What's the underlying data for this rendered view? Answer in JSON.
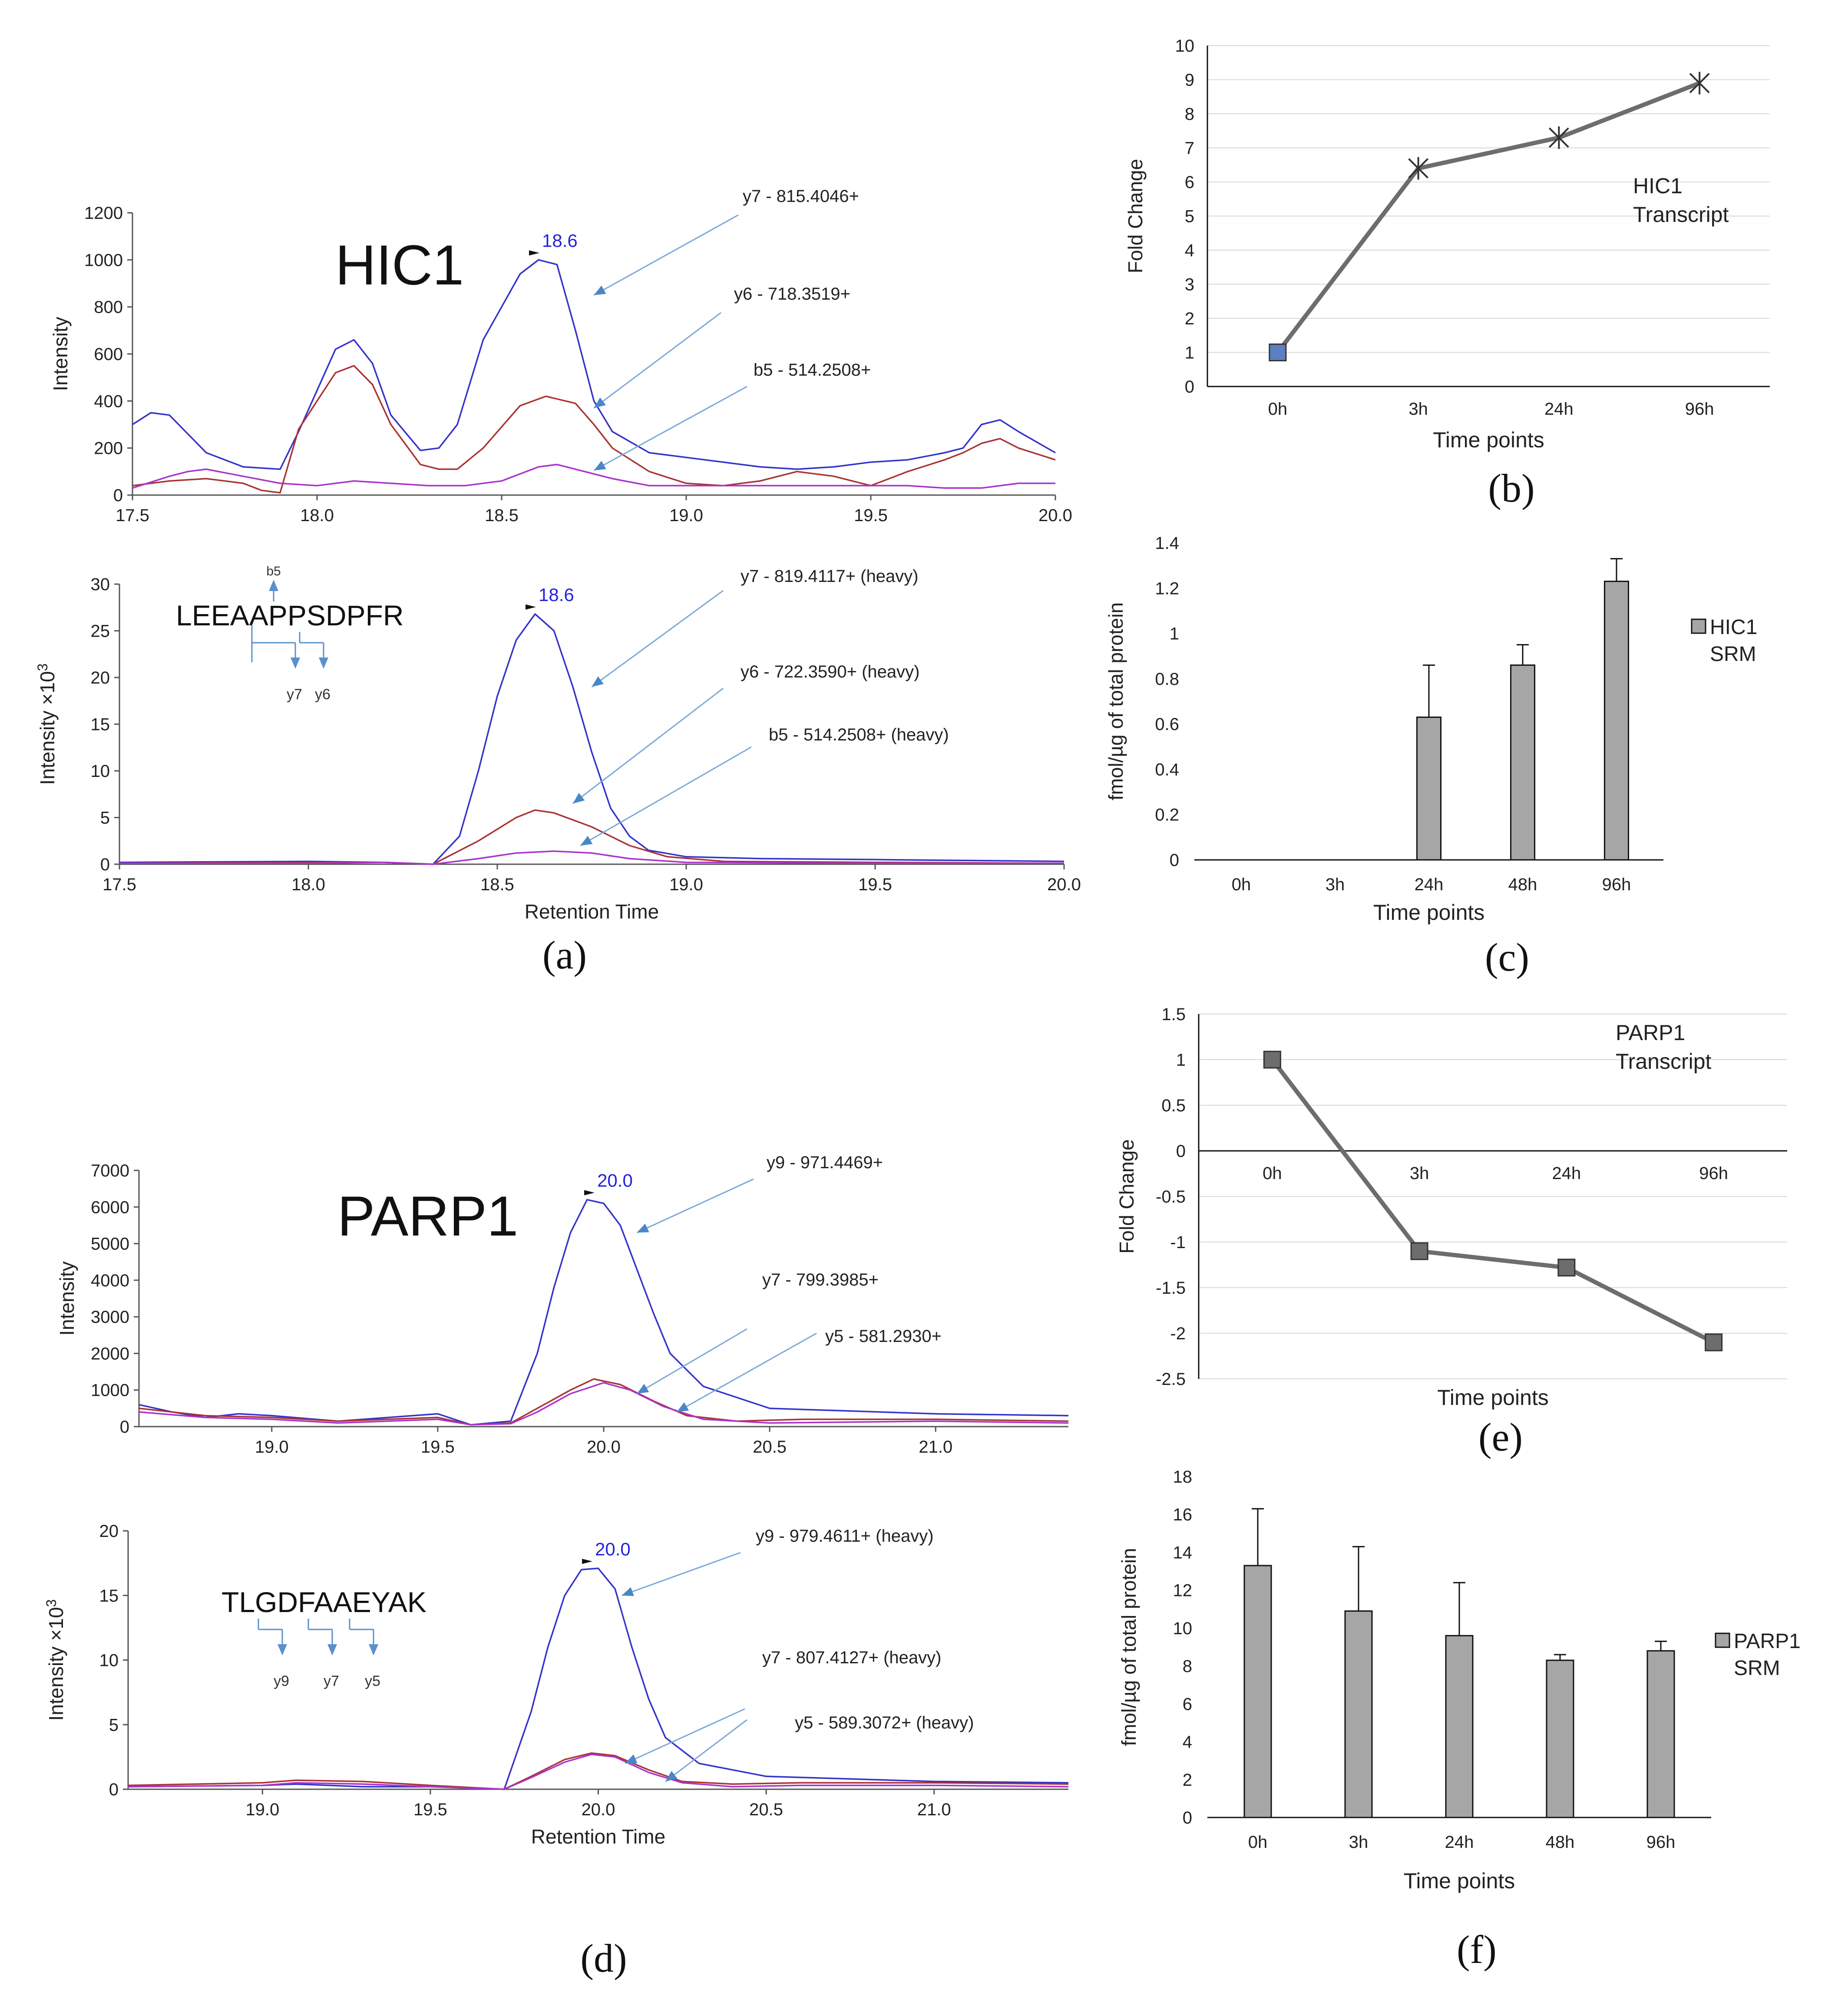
{
  "chart_data": [
    {
      "id": "a-light",
      "panel": "(a)",
      "type": "line",
      "title": "HIC1",
      "ylabel": "Intensity",
      "xlim": [
        17.5,
        20.0
      ],
      "ylim": [
        0,
        1200
      ],
      "xticks": [
        "17.5",
        "18.0",
        "18.5",
        "19.0",
        "19.5",
        "20.0"
      ],
      "yticks": [
        "0",
        "200",
        "400",
        "600",
        "800",
        "1000",
        "1200"
      ],
      "peak_label": "18.6",
      "peak_x": 18.6,
      "series": [
        {
          "name": "y7 - 815.4046+",
          "color": "#3333cc",
          "arrow_to": [
            18.75,
            850
          ],
          "x": [
            17.5,
            17.55,
            17.6,
            17.7,
            17.8,
            17.9,
            17.95,
            18.05,
            18.1,
            18.15,
            18.2,
            18.28,
            18.33,
            18.38,
            18.45,
            18.55,
            18.6,
            18.65,
            18.7,
            18.75,
            18.8,
            18.9,
            19.0,
            19.2,
            19.3,
            19.4,
            19.5,
            19.6,
            19.7,
            19.75,
            19.8,
            19.85,
            19.9,
            20.0
          ],
          "y": [
            300,
            350,
            340,
            180,
            120,
            110,
            270,
            620,
            660,
            560,
            340,
            190,
            200,
            300,
            660,
            940,
            1000,
            980,
            700,
            400,
            270,
            180,
            160,
            120,
            110,
            120,
            140,
            150,
            180,
            200,
            300,
            320,
            270,
            180
          ]
        },
        {
          "name": "y6 - 718.3519+",
          "color": "#aa3333",
          "arrow_to": [
            18.75,
            370
          ],
          "x": [
            17.5,
            17.6,
            17.7,
            17.8,
            17.85,
            17.9,
            17.95,
            18.05,
            18.1,
            18.15,
            18.2,
            18.28,
            18.33,
            18.38,
            18.45,
            18.55,
            18.62,
            18.7,
            18.75,
            18.8,
            18.9,
            19.0,
            19.1,
            19.2,
            19.3,
            19.4,
            19.5,
            19.6,
            19.7,
            19.75,
            19.8,
            19.85,
            19.9,
            20.0
          ],
          "y": [
            40,
            60,
            70,
            50,
            20,
            10,
            280,
            520,
            550,
            470,
            300,
            130,
            110,
            110,
            200,
            380,
            420,
            390,
            300,
            200,
            100,
            50,
            40,
            60,
            100,
            80,
            40,
            100,
            150,
            180,
            220,
            240,
            200,
            150
          ]
        },
        {
          "name": "b5 - 514.2508+",
          "color": "#aa33cc",
          "arrow_to": [
            18.75,
            105
          ],
          "x": [
            17.5,
            17.6,
            17.65,
            17.7,
            17.8,
            17.9,
            18.0,
            18.1,
            18.2,
            18.3,
            18.4,
            18.5,
            18.6,
            18.65,
            18.7,
            18.8,
            18.9,
            19.0,
            19.2,
            19.4,
            19.6,
            19.7,
            19.8,
            19.9,
            20.0
          ],
          "y": [
            30,
            80,
            100,
            110,
            80,
            50,
            40,
            60,
            50,
            40,
            40,
            60,
            120,
            130,
            110,
            70,
            40,
            40,
            40,
            40,
            40,
            30,
            30,
            50,
            50
          ]
        }
      ],
      "labels": [
        "y7 - 815.4046+",
        "y6 - 718.3519+",
        "b5 - 514.2508+"
      ]
    },
    {
      "id": "a-heavy",
      "panel": "(a)",
      "type": "line",
      "ylabel": "Intensity ×10",
      "ylabel_sup": "3",
      "xlabel": "Retention Time",
      "xlim": [
        17.5,
        20.0
      ],
      "ylim": [
        0,
        30
      ],
      "xticks": [
        "17.5",
        "18.0",
        "18.5",
        "19.0",
        "19.5",
        "20.0"
      ],
      "yticks": [
        "0",
        "5",
        "10",
        "15",
        "20",
        "25",
        "30"
      ],
      "peak_label": "18.6",
      "peak_x": 18.6,
      "peptide": "LEEAAPPSDPFR",
      "fragments": {
        "top": [
          "b5"
        ],
        "bottom": [
          "y7",
          "y6"
        ]
      },
      "series": [
        {
          "name": "y7 - 819.4117+ (heavy)",
          "color": "#3333cc",
          "arrow_to": [
            18.75,
            19
          ],
          "x": [
            17.5,
            18.0,
            18.2,
            18.33,
            18.4,
            18.45,
            18.5,
            18.55,
            18.6,
            18.65,
            18.7,
            18.75,
            18.8,
            18.85,
            18.9,
            19.0,
            19.2,
            19.5,
            20.0
          ],
          "y": [
            0.2,
            0.3,
            0.2,
            0,
            3,
            10,
            18,
            24,
            26.8,
            25,
            19,
            12,
            6,
            3,
            1.5,
            0.8,
            0.6,
            0.5,
            0.3
          ]
        },
        {
          "name": "y6 - 722.3590+ (heavy)",
          "color": "#aa3333",
          "arrow_to": [
            18.7,
            6.5
          ],
          "x": [
            17.5,
            18.0,
            18.2,
            18.33,
            18.45,
            18.55,
            18.6,
            18.65,
            18.75,
            18.85,
            18.95,
            19.1,
            19.5,
            20.0
          ],
          "y": [
            0.1,
            0.2,
            0.2,
            0,
            2.5,
            5,
            5.8,
            5.5,
            4,
            2,
            0.8,
            0.3,
            0.2,
            0.1
          ]
        },
        {
          "name": "b5 - 514.2508+ (heavy)",
          "color": "#aa33cc",
          "arrow_to": [
            18.72,
            2
          ],
          "x": [
            17.5,
            18.0,
            18.2,
            18.33,
            18.45,
            18.55,
            18.65,
            18.75,
            18.85,
            19.0,
            19.5,
            20.0
          ],
          "y": [
            0.1,
            0.1,
            0.2,
            0,
            0.6,
            1.2,
            1.4,
            1.2,
            0.6,
            0.2,
            0.1,
            0.1
          ]
        }
      ],
      "labels": [
        "y7 - 819.4117+ (heavy)",
        "y6 - 722.3590+ (heavy)",
        "b5 - 514.2508+ (heavy)"
      ]
    },
    {
      "id": "b",
      "panel": "(b)",
      "type": "line",
      "title": "HIC1\nTranscript",
      "title_lines": [
        "HIC1",
        "Transcript"
      ],
      "xlabel": "Time points",
      "ylabel": "Fold Change",
      "categories": [
        "0h",
        "3h",
        "24h",
        "96h"
      ],
      "values": [
        1,
        6.4,
        7.3,
        8.9
      ],
      "ylim": [
        0,
        10
      ],
      "yticks": [
        "0",
        "1",
        "2",
        "3",
        "4",
        "5",
        "6",
        "7",
        "8",
        "9",
        "10"
      ]
    },
    {
      "id": "c",
      "panel": "(c)",
      "type": "bar",
      "xlabel": "Time points",
      "ylabel": "fmol/µg of total protein",
      "categories": [
        "0h",
        "3h",
        "24h",
        "48h",
        "96h"
      ],
      "values": [
        0,
        0,
        0.63,
        0.86,
        1.23
      ],
      "errors": [
        0,
        0,
        0.23,
        0.09,
        0.1
      ],
      "ylim": [
        0,
        1.4
      ],
      "yticks": [
        "0",
        "0.2",
        "0.4",
        "0.6",
        "0.8",
        "1",
        "1.2",
        "1.4"
      ],
      "legend": [
        "HIC1",
        "SRM"
      ]
    },
    {
      "id": "d-light",
      "panel": "(d)",
      "type": "line",
      "title": "PARP1",
      "ylabel": "Intensity",
      "xlim": [
        18.6,
        21.4
      ],
      "ylim": [
        0,
        7000
      ],
      "xticks": [
        "19.0",
        "19.5",
        "20.0",
        "20.5",
        "21.0"
      ],
      "yticks": [
        "0",
        "1000",
        "2000",
        "3000",
        "4000",
        "5000",
        "6000",
        "7000"
      ],
      "peak_label": "20.0",
      "peak_x": 19.97,
      "series": [
        {
          "name": "y9 - 971.4469+",
          "color": "#3333cc",
          "arrow_to": [
            20.1,
            5300
          ],
          "x": [
            18.6,
            18.7,
            18.8,
            18.9,
            19.0,
            19.2,
            19.5,
            19.6,
            19.72,
            19.8,
            19.85,
            19.9,
            19.95,
            20.0,
            20.05,
            20.1,
            20.15,
            20.2,
            20.3,
            20.5,
            21.0,
            21.4
          ],
          "y": [
            600,
            400,
            250,
            350,
            300,
            150,
            350,
            50,
            150,
            2000,
            3800,
            5300,
            6200,
            6100,
            5500,
            4300,
            3100,
            2000,
            1100,
            500,
            350,
            300
          ]
        },
        {
          "name": "y7 - 799.3985+",
          "color": "#aa3333",
          "arrow_to": [
            20.1,
            900
          ],
          "x": [
            18.6,
            18.8,
            19.0,
            19.2,
            19.5,
            19.6,
            19.72,
            19.8,
            19.9,
            19.97,
            20.05,
            20.15,
            20.25,
            20.4,
            20.6,
            21.0,
            21.4
          ],
          "y": [
            500,
            300,
            250,
            150,
            250,
            50,
            100,
            500,
            1000,
            1300,
            1150,
            700,
            300,
            150,
            200,
            200,
            150
          ]
        },
        {
          "name": "y5 - 581.2930+",
          "color": "#aa33cc",
          "arrow_to": [
            20.22,
            400
          ],
          "x": [
            18.6,
            18.8,
            19.0,
            19.2,
            19.5,
            19.6,
            19.72,
            19.8,
            19.9,
            20.0,
            20.08,
            20.18,
            20.3,
            20.5,
            21.0,
            21.4
          ],
          "y": [
            400,
            250,
            200,
            100,
            200,
            50,
            80,
            400,
            900,
            1200,
            1000,
            550,
            200,
            100,
            150,
            100
          ]
        }
      ],
      "labels": [
        "y9 - 971.4469+",
        "y7 - 799.3985+",
        "y5 - 581.2930+"
      ]
    },
    {
      "id": "d-heavy",
      "panel": "(d)",
      "type": "line",
      "ylabel": "Intensity ×10",
      "ylabel_sup": "3",
      "xlabel": "Retention Time",
      "xlim": [
        18.6,
        21.4
      ],
      "ylim": [
        0,
        20
      ],
      "xticks": [
        "19.0",
        "19.5",
        "20.0",
        "20.5",
        "21.0"
      ],
      "yticks": [
        "0",
        "5",
        "10",
        "15",
        "20"
      ],
      "peak_label": "20.0",
      "peak_x": 19.98,
      "peptide": "TLGDFAAEYAK",
      "fragments": {
        "bottom": [
          "y9",
          "y7",
          "y5"
        ]
      },
      "series": [
        {
          "name": "y9 - 979.4611+ (heavy)",
          "color": "#3333cc",
          "arrow_to": [
            20.07,
            15
          ],
          "x": [
            18.6,
            19.0,
            19.1,
            19.3,
            19.5,
            19.72,
            19.8,
            19.85,
            19.9,
            19.95,
            20.0,
            20.05,
            20.1,
            20.15,
            20.2,
            20.3,
            20.5,
            21.0,
            21.4
          ],
          "y": [
            0.2,
            0.3,
            0.4,
            0.2,
            0.2,
            0,
            6,
            11,
            15,
            17,
            17.1,
            15.5,
            11,
            7,
            4,
            2,
            1,
            0.6,
            0.5
          ]
        },
        {
          "name": "y7 - 807.4127+ (heavy)",
          "color": "#aa3333",
          "arrow_to": [
            20.08,
            2
          ],
          "x": [
            18.6,
            19.0,
            19.1,
            19.3,
            19.5,
            19.72,
            19.8,
            19.9,
            19.98,
            20.05,
            20.15,
            20.25,
            20.4,
            20.6,
            21.0,
            21.4
          ],
          "y": [
            0.3,
            0.5,
            0.7,
            0.6,
            0.3,
            0,
            1,
            2.3,
            2.8,
            2.6,
            1.5,
            0.6,
            0.4,
            0.5,
            0.5,
            0.4
          ]
        },
        {
          "name": "y5 - 589.3072+ (heavy)",
          "color": "#aa33cc",
          "arrow_to": [
            20.2,
            0.6
          ],
          "x": [
            18.6,
            19.0,
            19.1,
            19.3,
            19.5,
            19.72,
            19.8,
            19.9,
            19.98,
            20.05,
            20.15,
            20.25,
            20.4,
            20.6,
            21.0,
            21.4
          ],
          "y": [
            0.2,
            0.3,
            0.5,
            0.4,
            0.2,
            0,
            0.9,
            2.1,
            2.7,
            2.5,
            1.3,
            0.5,
            0.2,
            0.3,
            0.3,
            0.2
          ]
        }
      ],
      "labels": [
        "y9 - 979.4611+ (heavy)",
        "y7 - 807.4127+ (heavy)",
        "y5 - 589.3072+ (heavy)"
      ]
    },
    {
      "id": "e",
      "panel": "(e)",
      "type": "line",
      "title_lines": [
        "PARP1",
        "Transcript"
      ],
      "xlabel": "Time points",
      "ylabel": "Fold Change",
      "categories": [
        "0h",
        "3h",
        "24h",
        "96h"
      ],
      "values": [
        1,
        -1.1,
        -1.28,
        -2.1
      ],
      "ylim": [
        -2.5,
        1.5
      ],
      "yticks": [
        "-2.5",
        "-2",
        "-1.5",
        "-1",
        "-0.5",
        "0",
        "0.5",
        "1",
        "1.5"
      ]
    },
    {
      "id": "f",
      "panel": "(f)",
      "type": "bar",
      "xlabel": "Time points",
      "ylabel": "fmol/µg of total protein",
      "categories": [
        "0h",
        "3h",
        "24h",
        "48h",
        "96h"
      ],
      "values": [
        13.3,
        10.9,
        9.6,
        8.3,
        8.8
      ],
      "errors": [
        3.0,
        3.4,
        2.8,
        0.3,
        0.5
      ],
      "ylim": [
        0,
        18
      ],
      "yticks": [
        "0",
        "2",
        "4",
        "6",
        "8",
        "10",
        "12",
        "14",
        "16",
        "18"
      ],
      "legend": [
        "PARP1",
        "SRM"
      ]
    }
  ],
  "panel_labels": {
    "a": "(a)",
    "b": "(b)",
    "c": "(c)",
    "d": "(d)",
    "e": "(e)",
    "f": "(f)"
  }
}
